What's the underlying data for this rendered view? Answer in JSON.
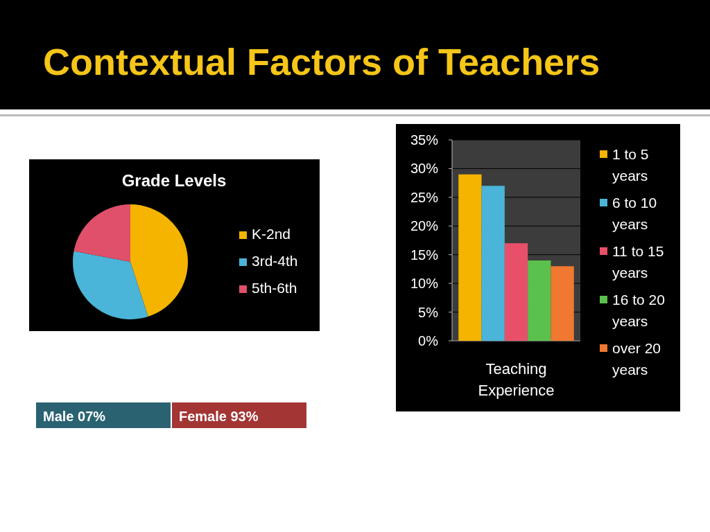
{
  "chart_data": [
    {
      "type": "other",
      "title": "Contextual Factors of Teachers",
      "annotations": [
        "Male 07%",
        "Female 93%"
      ]
    },
    {
      "type": "pie",
      "title": "Grade Levels",
      "categories": [
        "K-2nd",
        "3rd-4th",
        "5th-6th"
      ],
      "values": [
        45,
        33,
        22
      ],
      "colors": [
        "#f5b400",
        "#4ab5d8",
        "#e0506a"
      ],
      "legend": "right"
    },
    {
      "type": "bar",
      "categories": [
        "Teaching Experience"
      ],
      "series": [
        {
          "name": "1 to 5 years",
          "color": "#f5b400",
          "values": [
            29
          ]
        },
        {
          "name": "6 to 10 years",
          "color": "#4ab5d8",
          "values": [
            27
          ]
        },
        {
          "name": "11 to 15 years",
          "color": "#e8506a",
          "values": [
            17
          ]
        },
        {
          "name": "16 to 20 years",
          "color": "#5cc04c",
          "values": [
            14
          ]
        },
        {
          "name": "over 20 years",
          "color": "#f07830",
          "values": [
            13
          ]
        }
      ],
      "ylim": [
        0,
        35
      ],
      "yticks": [
        {
          "value": 0,
          "label": "0%"
        },
        {
          "value": 5,
          "label": "5%"
        },
        {
          "value": 10,
          "label": "10%"
        },
        {
          "value": 15,
          "label": "15%"
        },
        {
          "value": 20,
          "label": "20%"
        },
        {
          "value": 25,
          "label": "25%"
        },
        {
          "value": 30,
          "label": "30%"
        },
        {
          "value": 35,
          "label": "35%"
        }
      ],
      "grid": "y",
      "legend": "right"
    }
  ]
}
